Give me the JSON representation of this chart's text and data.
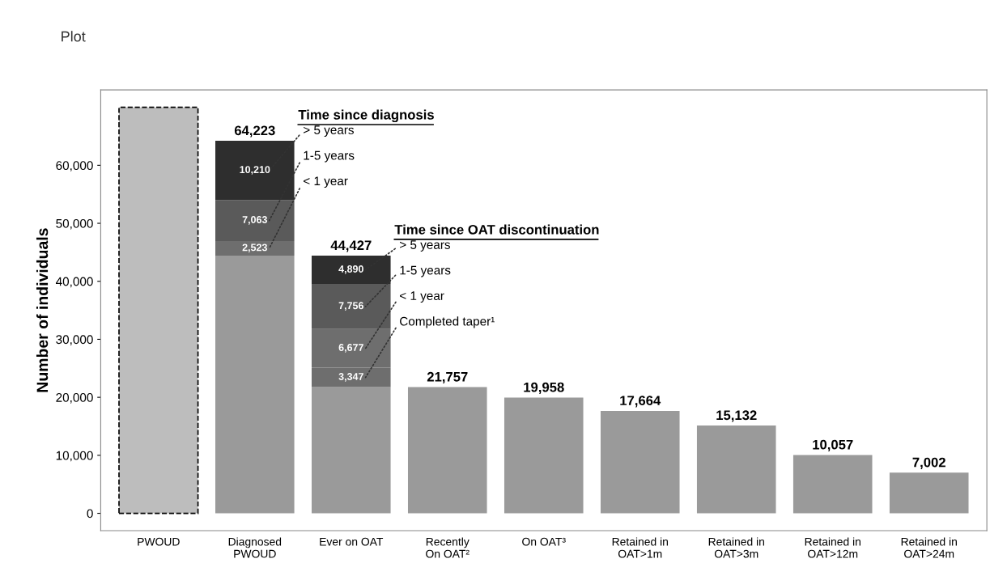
{
  "chart_data": {
    "type": "bar",
    "stacked": true,
    "ylabel": "Number of individuals",
    "categories": [
      "PWOUD",
      "Diagnosed\nPWOUD",
      "Ever on OAT",
      "Recently\nOn OAT²",
      "On OAT³",
      "Retained in\nOAT>1m",
      "Retained in\nOAT>3m",
      "Retained in\nOAT>12m",
      "Retained in\nOAT>24m"
    ],
    "series": [
      {
        "color": "#bdbdbd",
        "line_style": "dashed",
        "values": [
          70000,
          null,
          null,
          null,
          null,
          null,
          null,
          null,
          null
        ]
      },
      {
        "color": "#9a9a9a",
        "values": [
          null,
          44427,
          21757,
          21757,
          19958,
          17664,
          15132,
          10057,
          7002
        ]
      },
      {
        "colors": [
          null,
          "#6e6e6e",
          "#6e6e6e",
          null,
          null,
          null,
          null,
          null,
          null
        ],
        "values": [
          null,
          2523,
          3347,
          null,
          null,
          null,
          null,
          null,
          null
        ],
        "value_labels": [
          null,
          "2,523",
          "3,347",
          null,
          null,
          null,
          null,
          null,
          null
        ]
      },
      {
        "colors": [
          null,
          "#5a5a5a",
          "#6e6e6e",
          null,
          null,
          null,
          null,
          null,
          null
        ],
        "values": [
          null,
          7063,
          6677,
          null,
          null,
          null,
          null,
          null,
          null
        ],
        "value_labels": [
          null,
          "7,063",
          "6,677",
          null,
          null,
          null,
          null,
          null,
          null
        ]
      },
      {
        "colors": [
          null,
          "#2e2e2e",
          "#5a5a5a",
          null,
          null,
          null,
          null,
          null,
          null
        ],
        "values": [
          null,
          10210,
          7756,
          null,
          null,
          null,
          null,
          null,
          null
        ],
        "value_labels": [
          null,
          "10,210",
          "7,756",
          null,
          null,
          null,
          null,
          null,
          null
        ]
      },
      {
        "colors": [
          null,
          null,
          "#2e2e2e",
          null,
          null,
          null,
          null,
          null,
          null
        ],
        "values": [
          null,
          null,
          4890,
          null,
          null,
          null,
          null,
          null,
          null
        ],
        "value_labels": [
          null,
          null,
          "4,890",
          null,
          null,
          null,
          null,
          null,
          null
        ]
      }
    ],
    "totals": [
      null,
      "64,223",
      "44,427",
      "21,757",
      "19,958",
      "17,664",
      "15,132",
      "10,057",
      "7,002"
    ],
    "ylim": [
      -3000,
      73000
    ],
    "yticks": [
      0,
      {
        "value": 10000,
        "label": "10,000"
      },
      {
        "value": 20000,
        "label": "20,000"
      },
      {
        "value": 30000,
        "label": "30,000"
      },
      {
        "value": 40000,
        "label": "40,000"
      },
      {
        "value": 50000,
        "label": "50,000"
      },
      {
        "value": 60000,
        "label": "60,000"
      }
    ],
    "annotations": [
      "Time since diagnosis",
      "> 5 years",
      "1-5 years",
      "< 1 year",
      "Time since OAT discontinuation",
      "> 5 years",
      "1-5 years",
      "< 1 year",
      "Completed taper¹",
      "Plot"
    ],
    "grid": false
  }
}
